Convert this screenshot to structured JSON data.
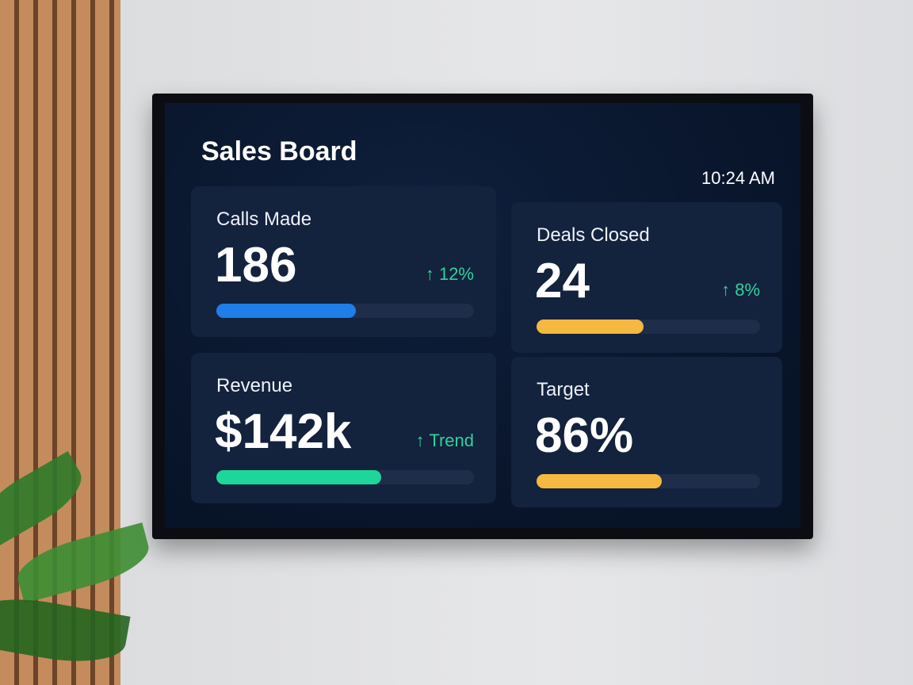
{
  "header": {
    "title": "Sales Board",
    "time": "10:24 AM"
  },
  "cards": [
    {
      "label": "Calls Made",
      "value": "186",
      "delta": "12%",
      "progress": 54,
      "color": "#1f7ee8"
    },
    {
      "label": "Deals Closed",
      "value": "24",
      "delta": "8%",
      "progress": 48,
      "color": "#f5b841"
    },
    {
      "label": "Revenue",
      "value": "$142k",
      "delta": "Trend",
      "progress": 64,
      "color": "#1fd69a"
    },
    {
      "label": "Target",
      "value": "86%",
      "delta": null,
      "progress": 56,
      "color": "#f5b841"
    }
  ]
}
